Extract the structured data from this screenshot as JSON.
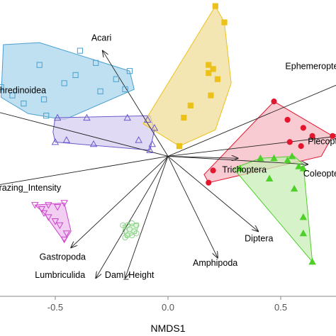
{
  "chart_data": {
    "type": "scatter",
    "title": "",
    "xlabel": "NMDS1",
    "ylabel": "",
    "xlim": [
      -0.745,
      0.745
    ],
    "ylim": [
      -0.69,
      0.77
    ],
    "grid": false,
    "legend": "none",
    "x_ticks": [
      {
        "value": -0.5,
        "label": "-0.5"
      },
      {
        "value": 0.0,
        "label": "0.0"
      },
      {
        "value": 0.5,
        "label": "0.5"
      }
    ],
    "groups": [
      {
        "marker": "open-square",
        "color": "#4a9fd0",
        "fill": "#a9d6ec",
        "hull": [
          [
            -0.73,
            0.55
          ],
          [
            -0.57,
            0.56
          ],
          [
            -0.17,
            0.42
          ],
          [
            -0.15,
            0.33
          ],
          [
            -0.46,
            0.18
          ],
          [
            -0.62,
            0.21
          ],
          [
            -0.74,
            0.29
          ]
        ],
        "points": [
          [
            -0.74,
            0.34
          ],
          [
            -0.69,
            0.3
          ],
          [
            -0.64,
            0.26
          ],
          [
            -0.57,
            0.45
          ],
          [
            -0.55,
            0.28
          ],
          [
            -0.46,
            0.36
          ],
          [
            -0.41,
            0.4
          ],
          [
            -0.39,
            0.52
          ],
          [
            -0.32,
            0.46
          ],
          [
            -0.3,
            0.32
          ],
          [
            -0.23,
            0.38
          ],
          [
            -0.19,
            0.33
          ],
          [
            -0.17,
            0.42
          ],
          [
            -0.54,
            0.2
          ]
        ]
      },
      {
        "marker": "open-triangle",
        "color": "#6a5acd",
        "fill": "#d7cdf0",
        "hull": [
          [
            -0.5,
            0.19
          ],
          [
            -0.08,
            0.2
          ],
          [
            -0.06,
            0.13
          ],
          [
            -0.08,
            0.03
          ],
          [
            -0.5,
            0.07
          ],
          [
            -0.51,
            0.12
          ]
        ],
        "points": [
          [
            -0.5,
            0.07
          ],
          [
            -0.49,
            0.19
          ],
          [
            -0.45,
            0.08
          ],
          [
            -0.36,
            0.19
          ],
          [
            -0.33,
            0.06
          ],
          [
            -0.18,
            0.19
          ],
          [
            -0.13,
            0.08
          ],
          [
            -0.09,
            0.18
          ],
          [
            -0.07,
            0.06
          ],
          [
            -0.06,
            0.14
          ],
          [
            -0.08,
            0.03
          ]
        ]
      },
      {
        "marker": "filled-square",
        "color": "#ecc11a",
        "fill": "#f0de9a",
        "hull": [
          [
            0.21,
            0.74
          ],
          [
            0.25,
            0.66
          ],
          [
            0.28,
            0.36
          ],
          [
            0.21,
            0.13
          ],
          [
            0.05,
            0.05
          ],
          [
            -0.11,
            0.16
          ]
        ],
        "points": [
          [
            0.21,
            0.74
          ],
          [
            0.25,
            0.66
          ],
          [
            0.18,
            0.45
          ],
          [
            0.18,
            0.41
          ],
          [
            0.2,
            0.43
          ],
          [
            0.22,
            0.38
          ],
          [
            0.19,
            0.3
          ],
          [
            0.1,
            0.25
          ],
          [
            0.07,
            0.19
          ],
          [
            0.05,
            0.05
          ]
        ]
      },
      {
        "marker": "filled-circle",
        "color": "#e3162e",
        "fill": "#f6b8c3",
        "hull": [
          [
            0.47,
            0.27
          ],
          [
            0.73,
            0.1
          ],
          [
            0.68,
            0.0
          ],
          [
            0.18,
            -0.13
          ],
          [
            0.16,
            -0.09
          ]
        ],
        "points": [
          [
            0.47,
            0.27
          ],
          [
            0.53,
            0.18
          ],
          [
            0.6,
            0.14
          ],
          [
            0.64,
            0.1
          ],
          [
            0.73,
            0.1
          ],
          [
            0.59,
            0.05
          ],
          [
            0.54,
            0.07
          ],
          [
            0.18,
            -0.13
          ],
          [
            0.2,
            -0.07
          ]
        ]
      },
      {
        "marker": "filled-triangle",
        "color": "#4fcf2a",
        "fill": "#c8eeb5",
        "hull": [
          [
            0.41,
            -0.01
          ],
          [
            0.56,
            0.0
          ],
          [
            0.6,
            -0.04
          ],
          [
            0.64,
            -0.52
          ],
          [
            0.29,
            -0.06
          ]
        ],
        "points": [
          [
            0.41,
            -0.01
          ],
          [
            0.47,
            -0.01
          ],
          [
            0.53,
            -0.02
          ],
          [
            0.55,
            0.0
          ],
          [
            0.58,
            -0.05
          ],
          [
            0.6,
            -0.06
          ],
          [
            0.56,
            -0.16
          ],
          [
            0.6,
            -0.3
          ],
          [
            0.6,
            -0.38
          ],
          [
            0.64,
            -0.52
          ],
          [
            0.32,
            -0.06
          ],
          [
            0.45,
            -0.11
          ]
        ]
      },
      {
        "marker": "open-down-triangle",
        "color": "#cc44cc",
        "fill": "#eebdee",
        "hull": [
          [
            -0.59,
            -0.24
          ],
          [
            -0.46,
            -0.23
          ],
          [
            -0.43,
            -0.37
          ],
          [
            -0.46,
            -0.42
          ],
          [
            -0.55,
            -0.28
          ]
        ],
        "points": [
          [
            -0.59,
            -0.24
          ],
          [
            -0.56,
            -0.26
          ],
          [
            -0.53,
            -0.24
          ],
          [
            -0.49,
            -0.25
          ],
          [
            -0.46,
            -0.23
          ],
          [
            -0.53,
            -0.3
          ],
          [
            -0.5,
            -0.32
          ],
          [
            -0.48,
            -0.34
          ],
          [
            -0.45,
            -0.38
          ],
          [
            -0.46,
            -0.41
          ],
          [
            -0.55,
            -0.28
          ]
        ]
      },
      {
        "marker": "open-circle",
        "color": "#8fd48a",
        "fill": "#d8f2d6",
        "hull": [
          [
            -0.2,
            -0.34
          ],
          [
            -0.13,
            -0.33
          ],
          [
            -0.14,
            -0.38
          ],
          [
            -0.19,
            -0.4
          ]
        ],
        "points": [
          [
            -0.2,
            -0.34
          ],
          [
            -0.18,
            -0.34
          ],
          [
            -0.16,
            -0.33
          ],
          [
            -0.14,
            -0.34
          ],
          [
            -0.19,
            -0.37
          ],
          [
            -0.17,
            -0.36
          ],
          [
            -0.15,
            -0.37
          ],
          [
            -0.18,
            -0.39
          ],
          [
            -0.16,
            -0.39
          ],
          [
            -0.14,
            -0.38
          ],
          [
            -0.19,
            -0.4
          ]
        ]
      }
    ],
    "vectors": [
      {
        "name": "Acari",
        "x": -0.29,
        "y": 0.52
      },
      {
        "name": "Ephemeroptera",
        "x": 0.83,
        "y": 0.39
      },
      {
        "name": "Tenthredinoidea",
        "x": -0.9,
        "y": 0.26
      },
      {
        "name": "Plecoptera",
        "x": 0.76,
        "y": 0.1
      },
      {
        "name": "Trichoptera",
        "x": 0.31,
        "y": -0.01
      },
      {
        "name": "Coleoptera",
        "x": 0.62,
        "y": -0.04
      },
      {
        "name": "Grazing_Intensity",
        "x": -0.8,
        "y": -0.15
      },
      {
        "name": "Diptera",
        "x": 0.4,
        "y": -0.37
      },
      {
        "name": "Amphipoda",
        "x": 0.22,
        "y": -0.5
      },
      {
        "name": "Gastropoda",
        "x": -0.43,
        "y": -0.45
      },
      {
        "name": "Lumbriculida",
        "x": -0.32,
        "y": -0.6
      },
      {
        "name": "Dam_Height",
        "x": -0.19,
        "y": -0.6
      }
    ],
    "vector_labels": [
      {
        "text": "Acari",
        "x": -0.34,
        "y": 0.57
      },
      {
        "text": "Ephemeroptera",
        "x": 0.52,
        "y": 0.43
      },
      {
        "text": "Tenthredinoidea",
        "x": -0.82,
        "y": 0.31
      },
      {
        "text": "Plecoptera",
        "x": 0.62,
        "y": 0.06
      },
      {
        "text": "Trichoptera",
        "x": 0.24,
        "y": -0.08
      },
      {
        "text": "Coleoptera",
        "x": 0.6,
        "y": -0.1
      },
      {
        "text": "Grazing_Intensity",
        "x": -0.78,
        "y": -0.17
      },
      {
        "text": "Diptera",
        "x": 0.34,
        "y": -0.42
      },
      {
        "text": "Amphipoda",
        "x": 0.11,
        "y": -0.54
      },
      {
        "text": "Gastropoda",
        "x": -0.57,
        "y": -0.51
      },
      {
        "text": "Lumbriculida",
        "x": -0.59,
        "y": -0.6
      },
      {
        "text": "Dam_Height",
        "x": -0.28,
        "y": -0.6
      }
    ]
  }
}
